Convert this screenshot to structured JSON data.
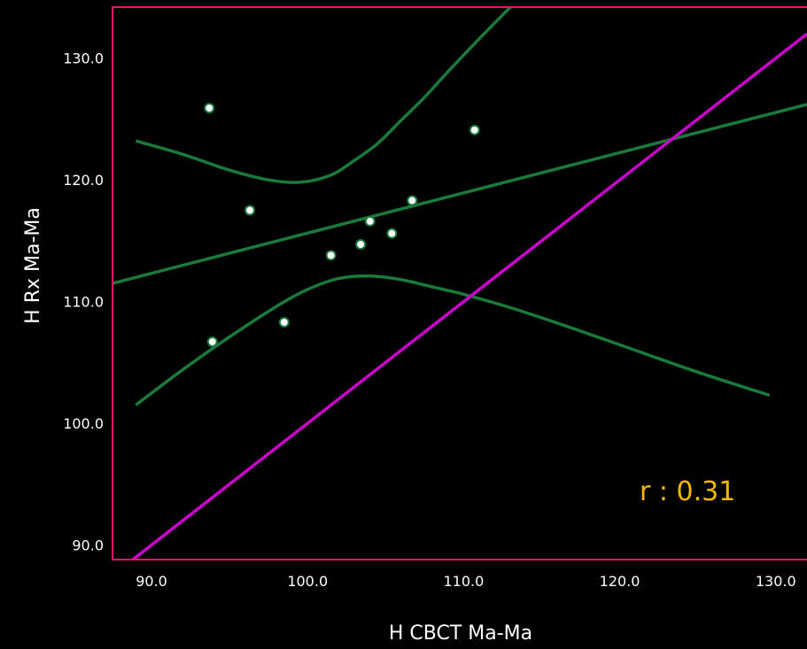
{
  "colors": {
    "background": "#000000",
    "frame": "#e0156a",
    "identity_line": "#cc00cc",
    "regression": "#1a7a3c",
    "points_fill": "#ffffff",
    "points_stroke": "#1a7a3c",
    "stat_text": "#f5b800",
    "text": "#ffffff"
  },
  "chart_data": {
    "type": "scatter",
    "title": "",
    "xlabel": "H  CBCT  Ma-Ma",
    "ylabel": "H  Rx  Ma-Ma",
    "xlim": [
      87.5,
      132.0
    ],
    "ylim": [
      88.8,
      134.2
    ],
    "xticks": [
      90,
      100,
      110,
      120,
      130
    ],
    "yticks": [
      90,
      100,
      110,
      120,
      130
    ],
    "xtick_labels": [
      "90.0",
      "100.0",
      "110.0",
      "120.0",
      "130.0"
    ],
    "ytick_labels": [
      "90.0",
      "100.0",
      "110.0",
      "120.0",
      "130.0"
    ],
    "grid": false,
    "points": [
      {
        "x": 93.7,
        "y": 125.9
      },
      {
        "x": 96.3,
        "y": 117.5
      },
      {
        "x": 93.9,
        "y": 106.7
      },
      {
        "x": 98.5,
        "y": 108.3
      },
      {
        "x": 101.5,
        "y": 113.8
      },
      {
        "x": 103.4,
        "y": 114.7
      },
      {
        "x": 104.0,
        "y": 116.6
      },
      {
        "x": 105.4,
        "y": 115.6
      },
      {
        "x": 106.7,
        "y": 118.3
      },
      {
        "x": 110.7,
        "y": 124.1
      }
    ],
    "regression_line": {
      "x": [
        87.5,
        132.0
      ],
      "y": [
        111.5,
        126.2
      ]
    },
    "upper_band": {
      "x": [
        89.0,
        92,
        95,
        97.5,
        99.5,
        101.5,
        103,
        104.5,
        106,
        107.5,
        109,
        111,
        113
      ],
      "y": [
        123.2,
        122.1,
        120.8,
        120.0,
        119.8,
        120.4,
        121.6,
        123.0,
        124.9,
        126.8,
        128.9,
        131.6,
        134.2
      ]
    },
    "lower_band": {
      "x": [
        89.0,
        92,
        95,
        98,
        100,
        102,
        104,
        106,
        108,
        110,
        113,
        117,
        121,
        125,
        129.6
      ],
      "y": [
        101.5,
        104.4,
        107.1,
        109.6,
        111.0,
        111.9,
        112.1,
        111.8,
        111.2,
        110.6,
        109.5,
        107.8,
        106.0,
        104.2,
        102.3
      ]
    },
    "identity_line": {
      "x": [
        88.5,
        132.0
      ],
      "y": [
        88.5,
        132.0
      ]
    },
    "annotation": "r : 0.31"
  }
}
